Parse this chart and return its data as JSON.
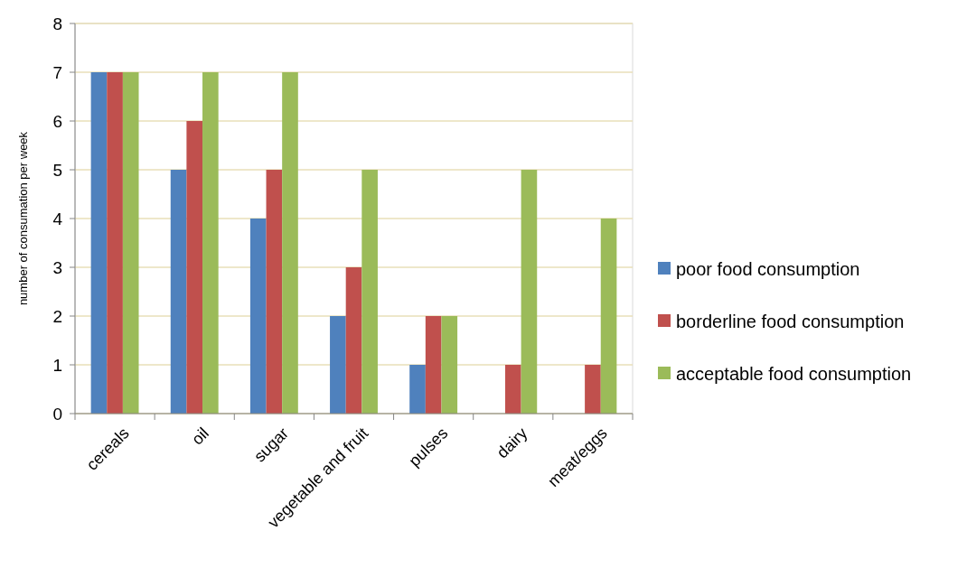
{
  "chart_data": {
    "type": "bar",
    "ylabel": "number of consumation per week",
    "categories": [
      "cereals",
      "oil",
      "sugar",
      "vegetable and fruit",
      "pulses",
      "dairy",
      "meat/eggs"
    ],
    "series": [
      {
        "name": "poor food consumption",
        "color": "#4f81bd",
        "values": [
          7,
          5,
          4,
          2,
          1,
          0,
          0
        ]
      },
      {
        "name": "borderline food consumption",
        "color": "#c0504d",
        "values": [
          7,
          6,
          5,
          3,
          2,
          1,
          1
        ]
      },
      {
        "name": "acceptable food consumption",
        "color": "#9bbb59",
        "values": [
          7,
          7,
          7,
          5,
          2,
          5,
          4
        ]
      }
    ],
    "ylim": [
      0,
      8
    ],
    "yticks": [
      0,
      1,
      2,
      3,
      4,
      5,
      6,
      7,
      8
    ],
    "grid": "y",
    "legend": "right"
  }
}
